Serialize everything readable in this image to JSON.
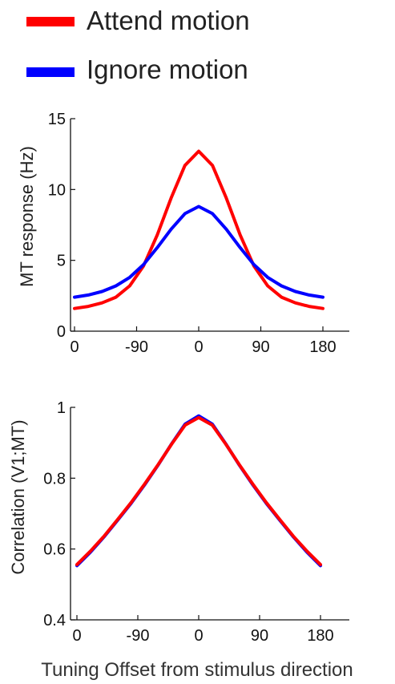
{
  "chart_data": [
    {
      "type": "line",
      "xlabel": "",
      "ylabel": "MT response (Hz)",
      "xlim": [
        0,
        180
      ],
      "ylim": [
        0,
        15
      ],
      "xticks": [
        0,
        45,
        90,
        135,
        180
      ],
      "xtick_labels": [
        "0",
        "-90",
        "0",
        "90",
        "180"
      ],
      "yticks": [
        0,
        5,
        10,
        15
      ],
      "ytick_labels": [
        "0",
        "5",
        "10",
        "15"
      ],
      "grid": false,
      "legend": "top-left",
      "x": [
        0,
        10,
        20,
        30,
        40,
        50,
        60,
        70,
        80,
        90,
        100,
        110,
        120,
        130,
        140,
        150,
        160,
        170,
        180
      ],
      "series": [
        {
          "name": "Attend motion",
          "color": "#ff0000",
          "values": [
            1.6,
            1.75,
            2.0,
            2.4,
            3.2,
            4.6,
            6.8,
            9.4,
            11.7,
            12.7,
            11.7,
            9.4,
            6.8,
            4.6,
            3.2,
            2.4,
            2.0,
            1.75,
            1.6
          ]
        },
        {
          "name": "Ignore motion",
          "color": "#0000ff",
          "values": [
            2.4,
            2.55,
            2.8,
            3.2,
            3.8,
            4.7,
            5.9,
            7.2,
            8.3,
            8.8,
            8.3,
            7.2,
            5.9,
            4.7,
            3.8,
            3.2,
            2.8,
            2.55,
            2.4
          ]
        }
      ]
    },
    {
      "type": "line",
      "xlabel": "Tuning Offset from stimulus direction",
      "ylabel": "Correlation (V1;MT)",
      "xlim": [
        0,
        180
      ],
      "ylim": [
        0.4,
        1.0
      ],
      "xticks": [
        0,
        45,
        90,
        135,
        180
      ],
      "xtick_labels": [
        "0",
        "-90",
        "0",
        "90",
        "180"
      ],
      "yticks": [
        0.4,
        0.6,
        0.8,
        1.0
      ],
      "ytick_labels": [
        "0.4",
        "0.6",
        "0.8",
        "1"
      ],
      "grid": false,
      "x": [
        0,
        10,
        20,
        30,
        40,
        50,
        60,
        70,
        80,
        90,
        100,
        110,
        120,
        130,
        140,
        150,
        160,
        170,
        180
      ],
      "series": [
        {
          "name": "Ignore motion",
          "color": "#0000ff",
          "values": [
            0.553,
            0.591,
            0.634,
            0.681,
            0.729,
            0.781,
            0.837,
            0.897,
            0.953,
            0.976,
            0.953,
            0.897,
            0.837,
            0.781,
            0.729,
            0.681,
            0.634,
            0.591,
            0.553
          ]
        },
        {
          "name": "Attend motion",
          "color": "#ff0000",
          "values": [
            0.556,
            0.594,
            0.636,
            0.683,
            0.731,
            0.783,
            0.838,
            0.896,
            0.95,
            0.971,
            0.95,
            0.896,
            0.838,
            0.783,
            0.731,
            0.683,
            0.636,
            0.594,
            0.556
          ]
        }
      ]
    }
  ],
  "legend": {
    "items": [
      {
        "label": "Attend motion",
        "color": "#ff0000"
      },
      {
        "label": "Ignore motion",
        "color": "#0000ff"
      }
    ]
  }
}
